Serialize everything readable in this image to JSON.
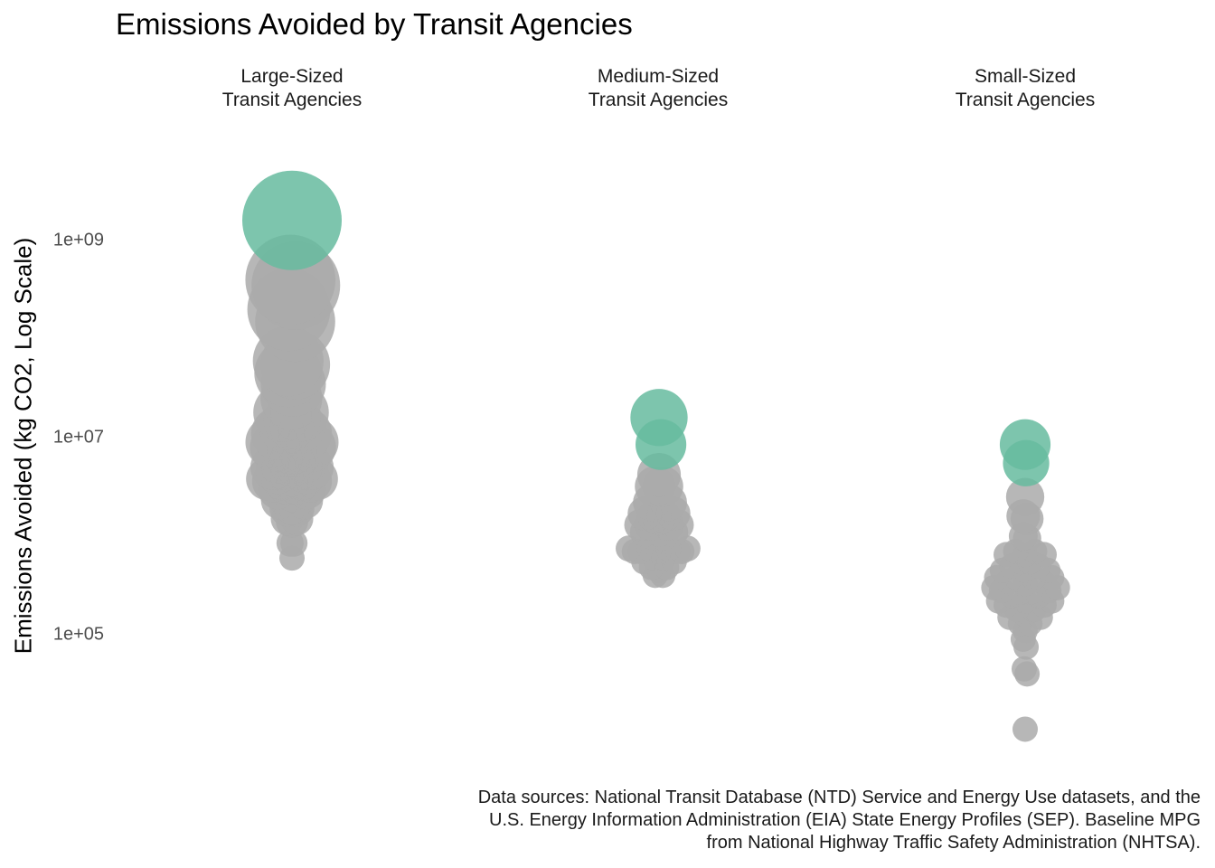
{
  "chart_data": {
    "type": "scatter",
    "title": "Emissions Avoided by Transit Agencies",
    "ylabel": "Emissions Avoided (kg CO2, Log Scale)",
    "xlabel": "",
    "y_scale": "log",
    "y_ticks": [
      "1e+05",
      "1e+07",
      "1e+09"
    ],
    "grid": false,
    "caption": "Data sources: National Transit Database (NTD) Service and Energy Use datasets, and the\nU.S. Energy Information Administration (EIA) State Energy Profiles (SEP). Baseline MPG\nfrom National Highway Traffic Safety Administration (NHTSA).",
    "colors": {
      "highlight": "#66bb9f",
      "default": "#aaaaaa"
    },
    "facets": [
      {
        "label": "Large-Sized\nTransit Agencies",
        "points": [
          {
            "x": 0.0,
            "y": 1600000000.0,
            "highlight": true
          },
          {
            "x": -0.05,
            "y": 400000000.0,
            "highlight": false
          },
          {
            "x": 0.12,
            "y": 350000000.0,
            "highlight": false
          },
          {
            "x": -0.1,
            "y": 200000000.0,
            "highlight": false
          },
          {
            "x": 0.1,
            "y": 150000000.0,
            "highlight": false
          },
          {
            "x": -0.12,
            "y": 60000000.0,
            "highlight": false
          },
          {
            "x": 0.1,
            "y": 55000000.0,
            "highlight": false
          },
          {
            "x": -0.12,
            "y": 45000000.0,
            "highlight": false
          },
          {
            "x": 0.04,
            "y": 35000000.0,
            "highlight": false
          },
          {
            "x": -0.02,
            "y": 25000000.0,
            "highlight": false
          },
          {
            "x": -0.3,
            "y": 18000000.0,
            "highlight": false
          },
          {
            "x": 0.24,
            "y": 18000000.0,
            "highlight": false
          },
          {
            "x": 0.0,
            "y": 15000000.0,
            "highlight": false
          },
          {
            "x": -0.18,
            "y": 13000000.0,
            "highlight": false
          },
          {
            "x": 0.18,
            "y": 13000000.0,
            "highlight": false
          },
          {
            "x": -0.45,
            "y": 11000000.0,
            "highlight": false
          },
          {
            "x": 0.42,
            "y": 11000000.0,
            "highlight": false
          },
          {
            "x": -0.66,
            "y": 9000000.0,
            "highlight": false
          },
          {
            "x": 0.66,
            "y": 9000000.0,
            "highlight": false
          },
          {
            "x": 0.6,
            "y": 8000000.0,
            "highlight": false
          },
          {
            "x": -0.54,
            "y": 8000000.0,
            "highlight": false
          },
          {
            "x": -0.3,
            "y": 8000000.0,
            "highlight": false
          },
          {
            "x": 0.3,
            "y": 8000000.0,
            "highlight": false
          },
          {
            "x": 0.0,
            "y": 7500000.0,
            "highlight": false
          },
          {
            "x": -0.15,
            "y": 7000000.0,
            "highlight": false
          },
          {
            "x": 0.15,
            "y": 7000000.0,
            "highlight": false
          },
          {
            "x": -0.42,
            "y": 6000000.0,
            "highlight": false
          },
          {
            "x": 0.42,
            "y": 6000000.0,
            "highlight": false
          },
          {
            "x": 0.0,
            "y": 5500000.0,
            "highlight": false
          },
          {
            "x": -0.6,
            "y": 5000000.0,
            "highlight": false
          },
          {
            "x": 0.6,
            "y": 5000000.0,
            "highlight": false
          },
          {
            "x": -0.24,
            "y": 5000000.0,
            "highlight": false
          },
          {
            "x": 0.24,
            "y": 5000000.0,
            "highlight": false
          },
          {
            "x": -0.45,
            "y": 4500000.0,
            "highlight": false
          },
          {
            "x": 0.45,
            "y": 4500000.0,
            "highlight": false
          },
          {
            "x": 0.0,
            "y": 4200000.0,
            "highlight": false
          },
          {
            "x": -0.78,
            "y": 3800000.0,
            "highlight": false
          },
          {
            "x": 0.78,
            "y": 3800000.0,
            "highlight": false
          },
          {
            "x": -0.3,
            "y": 3800000.0,
            "highlight": false
          },
          {
            "x": 0.3,
            "y": 3800000.0,
            "highlight": false
          },
          {
            "x": 0.6,
            "y": 3600000.0,
            "highlight": false
          },
          {
            "x": -0.6,
            "y": 3600000.0,
            "highlight": false
          },
          {
            "x": -0.15,
            "y": 3400000.0,
            "highlight": false
          },
          {
            "x": 0.15,
            "y": 3400000.0,
            "highlight": false
          },
          {
            "x": -0.45,
            "y": 3000000.0,
            "highlight": false
          },
          {
            "x": 0.45,
            "y": 3000000.0,
            "highlight": false
          },
          {
            "x": 0.0,
            "y": 2800000.0,
            "highlight": false
          },
          {
            "x": -0.24,
            "y": 2600000.0,
            "highlight": false
          },
          {
            "x": 0.24,
            "y": 2600000.0,
            "highlight": false
          },
          {
            "x": -0.39,
            "y": 2300000.0,
            "highlight": false
          },
          {
            "x": 0.39,
            "y": 2300000.0,
            "highlight": false
          },
          {
            "x": 0.0,
            "y": 2000000.0,
            "highlight": false
          },
          {
            "x": -0.15,
            "y": 1900000.0,
            "highlight": false
          },
          {
            "x": 0.15,
            "y": 1900000.0,
            "highlight": false
          },
          {
            "x": -0.15,
            "y": 1500000.0,
            "highlight": false
          },
          {
            "x": 0.15,
            "y": 1500000.0,
            "highlight": false
          },
          {
            "x": 0.0,
            "y": 1400000.0,
            "highlight": false
          },
          {
            "x": -0.06,
            "y": 850000.0,
            "highlight": false
          },
          {
            "x": 0.06,
            "y": 850000.0,
            "highlight": false
          },
          {
            "x": 0.0,
            "y": 600000.0,
            "highlight": false
          }
        ]
      },
      {
        "label": "Medium-Sized\nTransit Agencies",
        "points": [
          {
            "x": 0.0,
            "y": 16000000.0,
            "highlight": true
          },
          {
            "x": 0.06,
            "y": 8500000.0,
            "highlight": true
          },
          {
            "x": 0.0,
            "y": 4200000.0,
            "highlight": false
          },
          {
            "x": -0.12,
            "y": 3200000.0,
            "highlight": false
          },
          {
            "x": 0.12,
            "y": 3200000.0,
            "highlight": false
          },
          {
            "x": -0.24,
            "y": 2200000.0,
            "highlight": false
          },
          {
            "x": 0.3,
            "y": 2200000.0,
            "highlight": false
          },
          {
            "x": -0.45,
            "y": 1700000.0,
            "highlight": false
          },
          {
            "x": 0.45,
            "y": 1700000.0,
            "highlight": false
          },
          {
            "x": -0.15,
            "y": 1600000.0,
            "highlight": false
          },
          {
            "x": 0.15,
            "y": 1600000.0,
            "highlight": false
          },
          {
            "x": 0.0,
            "y": 1500000.0,
            "highlight": false
          },
          {
            "x": -0.6,
            "y": 1300000.0,
            "highlight": false
          },
          {
            "x": 0.6,
            "y": 1300000.0,
            "highlight": false
          },
          {
            "x": -0.3,
            "y": 1300000.0,
            "highlight": false
          },
          {
            "x": 0.3,
            "y": 1300000.0,
            "highlight": false
          },
          {
            "x": -0.45,
            "y": 1100000.0,
            "highlight": false
          },
          {
            "x": 0.45,
            "y": 1100000.0,
            "highlight": false
          },
          {
            "x": 0.0,
            "y": 1100000.0,
            "highlight": false
          },
          {
            "x": -0.15,
            "y": 1000000.0,
            "highlight": false
          },
          {
            "x": 0.15,
            "y": 1000000.0,
            "highlight": false
          },
          {
            "x": -0.96,
            "y": 750000.0,
            "highlight": false
          },
          {
            "x": 0.9,
            "y": 750000.0,
            "highlight": false
          },
          {
            "x": -0.78,
            "y": 700000.0,
            "highlight": false
          },
          {
            "x": 0.72,
            "y": 700000.0,
            "highlight": false
          },
          {
            "x": -0.6,
            "y": 700000.0,
            "highlight": false
          },
          {
            "x": 0.6,
            "y": 700000.0,
            "highlight": false
          },
          {
            "x": -0.3,
            "y": 750000.0,
            "highlight": false
          },
          {
            "x": 0.3,
            "y": 750000.0,
            "highlight": false
          },
          {
            "x": 0.0,
            "y": 700000.0,
            "highlight": false
          },
          {
            "x": -0.15,
            "y": 600000.0,
            "highlight": false
          },
          {
            "x": 0.15,
            "y": 600000.0,
            "highlight": false
          },
          {
            "x": -0.48,
            "y": 550000.0,
            "highlight": false
          },
          {
            "x": 0.48,
            "y": 550000.0,
            "highlight": false
          },
          {
            "x": -0.24,
            "y": 480000.0,
            "highlight": false
          },
          {
            "x": 0.24,
            "y": 480000.0,
            "highlight": false
          },
          {
            "x": 0.0,
            "y": 450000.0,
            "highlight": false
          },
          {
            "x": -0.12,
            "y": 400000.0,
            "highlight": false
          },
          {
            "x": 0.12,
            "y": 400000.0,
            "highlight": false
          }
        ]
      },
      {
        "label": "Small-Sized\nTransit Agencies",
        "points": [
          {
            "x": 0.0,
            "y": 8500000.0,
            "highlight": true
          },
          {
            "x": 0.03,
            "y": 5500000.0,
            "highlight": true
          },
          {
            "x": 0.0,
            "y": 2500000.0,
            "highlight": false
          },
          {
            "x": -0.06,
            "y": 1600000.0,
            "highlight": false
          },
          {
            "x": 0.06,
            "y": 1500000.0,
            "highlight": false
          },
          {
            "x": -0.06,
            "y": 1000000.0,
            "highlight": false
          },
          {
            "x": 0.06,
            "y": 950000.0,
            "highlight": false
          },
          {
            "x": -0.3,
            "y": 700000.0,
            "highlight": false
          },
          {
            "x": 0.3,
            "y": 700000.0,
            "highlight": false
          },
          {
            "x": -0.6,
            "y": 650000.0,
            "highlight": false
          },
          {
            "x": 0.6,
            "y": 650000.0,
            "highlight": false
          },
          {
            "x": 0.0,
            "y": 650000.0,
            "highlight": false
          },
          {
            "x": -0.15,
            "y": 550000.0,
            "highlight": false
          },
          {
            "x": 0.15,
            "y": 550000.0,
            "highlight": false
          },
          {
            "x": -0.42,
            "y": 500000.0,
            "highlight": false
          },
          {
            "x": 0.42,
            "y": 500000.0,
            "highlight": false
          },
          {
            "x": -0.72,
            "y": 450000.0,
            "highlight": false
          },
          {
            "x": 0.72,
            "y": 450000.0,
            "highlight": false
          },
          {
            "x": 0.0,
            "y": 450000.0,
            "highlight": false
          },
          {
            "x": -0.9,
            "y": 380000.0,
            "highlight": false
          },
          {
            "x": 0.84,
            "y": 380000.0,
            "highlight": false
          },
          {
            "x": -0.27,
            "y": 380000.0,
            "highlight": false
          },
          {
            "x": 0.27,
            "y": 380000.0,
            "highlight": false
          },
          {
            "x": -0.54,
            "y": 350000.0,
            "highlight": false
          },
          {
            "x": 0.54,
            "y": 350000.0,
            "highlight": false
          },
          {
            "x": 0.0,
            "y": 330000.0,
            "highlight": false
          },
          {
            "x": -0.99,
            "y": 300000.0,
            "highlight": false
          },
          {
            "x": 1.02,
            "y": 300000.0,
            "highlight": false
          },
          {
            "x": -0.75,
            "y": 280000.0,
            "highlight": false
          },
          {
            "x": 0.75,
            "y": 280000.0,
            "highlight": false
          },
          {
            "x": -0.15,
            "y": 270000.0,
            "highlight": false
          },
          {
            "x": 0.15,
            "y": 270000.0,
            "highlight": false
          },
          {
            "x": -0.42,
            "y": 250000.0,
            "highlight": false
          },
          {
            "x": 0.42,
            "y": 250000.0,
            "highlight": false
          },
          {
            "x": -0.84,
            "y": 220000.0,
            "highlight": false
          },
          {
            "x": 0.84,
            "y": 220000.0,
            "highlight": false
          },
          {
            "x": 0.0,
            "y": 220000.0,
            "highlight": false
          },
          {
            "x": -0.6,
            "y": 200000.0,
            "highlight": false
          },
          {
            "x": 0.6,
            "y": 200000.0,
            "highlight": false
          },
          {
            "x": -0.27,
            "y": 180000.0,
            "highlight": false
          },
          {
            "x": 0.27,
            "y": 180000.0,
            "highlight": false
          },
          {
            "x": 0.0,
            "y": 160000.0,
            "highlight": false
          },
          {
            "x": -0.48,
            "y": 150000.0,
            "highlight": false
          },
          {
            "x": 0.48,
            "y": 150000.0,
            "highlight": false
          },
          {
            "x": -0.15,
            "y": 130000.0,
            "highlight": false
          },
          {
            "x": 0.15,
            "y": 130000.0,
            "highlight": false
          },
          {
            "x": 0.0,
            "y": 110000.0,
            "highlight": false
          },
          {
            "x": -0.06,
            "y": 90000.0,
            "highlight": false
          },
          {
            "x": 0.03,
            "y": 75000.0,
            "highlight": false
          },
          {
            "x": -0.03,
            "y": 45000.0,
            "highlight": false
          },
          {
            "x": 0.06,
            "y": 40000.0,
            "highlight": false
          },
          {
            "x": 0.0,
            "y": 11000.0,
            "highlight": false
          }
        ]
      }
    ]
  }
}
